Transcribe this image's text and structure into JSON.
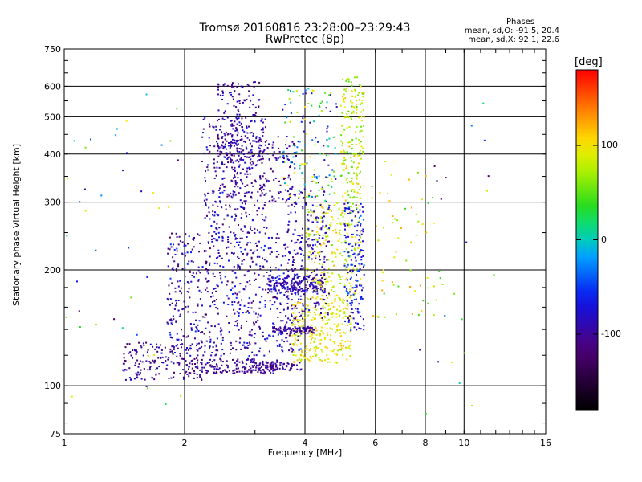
{
  "header": {
    "title_line1": "Tromsø 20160816 23:28:00–23:29:43",
    "title_line2": "RwPretec (8p)"
  },
  "stats": {
    "heading": "Phases",
    "line_o": "mean, sd,O: -91.5, 20.4",
    "line_x": "mean, sd,X:  92.1, 22.6"
  },
  "colorbar": {
    "unit_label": "[deg]",
    "range": [
      -180,
      180
    ],
    "ticks": [
      {
        "value": 100,
        "label": "100"
      },
      {
        "value": 0,
        "label": "0"
      },
      {
        "value": -100,
        "label": "-100"
      }
    ]
  },
  "chart_data": {
    "type": "scatter",
    "title": "Tromsø 20160816 23:28:00–23:29:43",
    "subtitle": "RwPretec (8p)",
    "xlabel": "Frequency [MHz]",
    "ylabel": "Stationary phase Virtual Height [km]",
    "x_scale": "log",
    "y_scale": "log",
    "xlim": [
      1,
      16
    ],
    "ylim": [
      75,
      750
    ],
    "x_ticks": [
      {
        "value": 1,
        "label": "1"
      },
      {
        "value": 2,
        "label": "2"
      },
      {
        "value": 4,
        "label": "4"
      },
      {
        "value": 6,
        "label": "6"
      },
      {
        "value": 8,
        "label": "8"
      },
      {
        "value": 10,
        "label": "10"
      },
      {
        "value": 16,
        "label": "16"
      }
    ],
    "x_grid": [
      2,
      4,
      6,
      8,
      10
    ],
    "y_ticks": [
      {
        "value": 75,
        "label": "75"
      },
      {
        "value": 100,
        "label": "100"
      },
      {
        "value": 200,
        "label": "200"
      },
      {
        "value": 300,
        "label": "300"
      },
      {
        "value": 400,
        "label": "400"
      },
      {
        "value": 500,
        "label": "500"
      },
      {
        "value": 600,
        "label": "600"
      },
      {
        "value": 750,
        "label": "750"
      }
    ],
    "y_grid": [
      100,
      200,
      300,
      400,
      500,
      600
    ],
    "grid": true,
    "color_variable": "phase [deg]",
    "clusters": [
      {
        "name": "bottom-trace-1",
        "x_range": [
          1.4,
          2.2
        ],
        "y_range": [
          104,
          130
        ],
        "phase_range": [
          -130,
          -70
        ],
        "count": 160
      },
      {
        "name": "bottom-trace-2",
        "x_range": [
          2.0,
          3.4
        ],
        "y_range": [
          108,
          118
        ],
        "phase_range": [
          -125,
          -80
        ],
        "count": 180
      },
      {
        "name": "bottom-trace-3",
        "x_range": [
          3.0,
          3.9
        ],
        "y_range": [
          110,
          116
        ],
        "phase_range": [
          -120,
          -85
        ],
        "count": 70
      },
      {
        "name": "low-cloud",
        "x_range": [
          1.8,
          3.9
        ],
        "y_range": [
          120,
          250
        ],
        "phase_range": [
          -130,
          -50
        ],
        "count": 650
      },
      {
        "name": "mid-column",
        "x_range": [
          2.2,
          3.2
        ],
        "y_range": [
          250,
          500
        ],
        "phase_range": [
          -120,
          -60
        ],
        "count": 320
      },
      {
        "name": "upper-column",
        "x_range": [
          2.4,
          3.1
        ],
        "y_range": [
          380,
          620
        ],
        "phase_range": [
          -125,
          -70
        ],
        "count": 160
      },
      {
        "name": "diagonal-trace",
        "x_range": [
          2.6,
          3.8
        ],
        "y_range": [
          300,
          450
        ],
        "phase_range": [
          -120,
          -80
        ],
        "count": 140
      },
      {
        "name": "band-180",
        "x_range": [
          3.2,
          4.5
        ],
        "y_range": [
          175,
          195
        ],
        "phase_range": [
          -110,
          -70
        ],
        "count": 160
      },
      {
        "name": "band-140",
        "x_range": [
          3.3,
          4.2
        ],
        "y_range": [
          137,
          143
        ],
        "phase_range": [
          -115,
          -80
        ],
        "count": 110
      },
      {
        "name": "x-mode-low",
        "x_range": [
          3.7,
          5.2
        ],
        "y_range": [
          115,
          170
        ],
        "phase_range": [
          70,
          120
        ],
        "count": 280
      },
      {
        "name": "x-mode-mid",
        "x_range": [
          4.0,
          5.5
        ],
        "y_range": [
          170,
          300
        ],
        "phase_range": [
          60,
          120
        ],
        "count": 220
      },
      {
        "name": "o-mode-4mhz",
        "x_range": [
          3.6,
          4.6
        ],
        "y_range": [
          150,
          330
        ],
        "phase_range": [
          -110,
          -60
        ],
        "count": 220
      },
      {
        "name": "x-mode-5.3mhz",
        "x_range": [
          4.9,
          5.6
        ],
        "y_range": [
          300,
          640
        ],
        "phase_range": [
          40,
          120
        ],
        "count": 180
      },
      {
        "name": "cusp-5.3mhz",
        "x_range": [
          5.0,
          5.6
        ],
        "y_range": [
          140,
          300
        ],
        "phase_range": [
          -100,
          -30
        ],
        "count": 160
      },
      {
        "name": "mid-4mhz-upper",
        "x_range": [
          3.5,
          4.8
        ],
        "y_range": [
          300,
          600
        ],
        "phase_range": [
          -100,
          110
        ],
        "count": 140
      },
      {
        "name": "sparse-6-8mhz",
        "x_range": [
          5.8,
          8.5
        ],
        "y_range": [
          150,
          400
        ],
        "phase_range": [
          40,
          130
        ],
        "count": 60
      },
      {
        "name": "sparse-1-2mhz",
        "x_range": [
          1.0,
          2.0
        ],
        "y_range": [
          85,
          600
        ],
        "phase_range": [
          -130,
          130
        ],
        "count": 45
      },
      {
        "name": "sparse-8-12mhz",
        "x_range": [
          7.5,
          12.0
        ],
        "y_range": [
          85,
          680
        ],
        "phase_range": [
          -130,
          100
        ],
        "count": 25
      }
    ]
  }
}
